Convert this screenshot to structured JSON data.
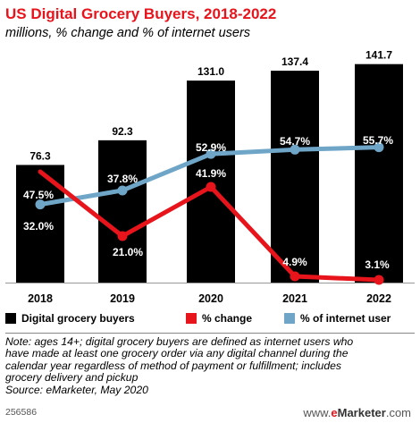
{
  "header": {
    "title": "US Digital Grocery Buyers, 2018-2022",
    "subtitle": "millions, % change and % of internet users"
  },
  "chart_data": {
    "type": "bar",
    "categories": [
      "2018",
      "2019",
      "2020",
      "2021",
      "2022"
    ],
    "series": [
      {
        "name": "Digital grocery buyers",
        "kind": "bar",
        "values": [
          76.3,
          92.3,
          131.0,
          137.4,
          141.7
        ],
        "labels": [
          "76.3",
          "92.3",
          "131.0",
          "137.4",
          "141.7"
        ],
        "color": "#000000"
      },
      {
        "name": "% change",
        "kind": "line",
        "values": [
          null,
          21.0,
          41.9,
          4.9,
          3.1
        ],
        "labels": [
          "",
          "21.0%",
          "41.9%",
          "4.9%",
          "3.1%"
        ],
        "color": "#e8141c"
      },
      {
        "name": "% of internet user",
        "kind": "line",
        "values": [
          32.0,
          37.8,
          52.9,
          54.7,
          55.7
        ],
        "labels": [
          "32.0%",
          "37.8%",
          "52.9%",
          "54.7%",
          "55.7%"
        ],
        "color": "#6fa6c8"
      }
    ],
    "annotations": [
      {
        "category": "2018",
        "text": "47.5%"
      }
    ],
    "ylim": [
      0,
      145
    ],
    "grid": false,
    "legend": "bottom"
  },
  "legend": {
    "items": [
      {
        "label": "Digital grocery buyers",
        "color": "#000000"
      },
      {
        "label": "% change",
        "color": "#e8141c"
      },
      {
        "label": "% of internet user",
        "color": "#6fa6c8"
      }
    ]
  },
  "note": {
    "lines": [
      "Note: ages 14+; digital grocery buyers are defined as internet users who",
      "have made at least one grocery order via any digital channel during the",
      "calendar year regardless of method of payment or fulfillment; includes",
      "grocery delivery and pickup",
      "Source: eMarketer, May 2020"
    ]
  },
  "footer": {
    "id": "256586",
    "brand_prefix": "www.",
    "brand_e": "e",
    "brand_name": "Marketer",
    "brand_suffix": ".com"
  }
}
